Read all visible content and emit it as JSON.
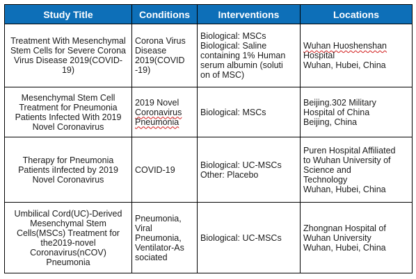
{
  "headers": [
    "Study Title",
    "Conditions",
    "Interventions",
    "Locations"
  ],
  "rows": [
    {
      "title": "Treatment With Mesenchymal Stem Cells for Severe Corona Virus Disease 2019(COVID-19)",
      "conditions": [
        "Corona Virus",
        "Disease",
        "2019(COVID",
        "-19)"
      ],
      "interventions": [
        "Biological: MSCs",
        "Biological: Saline",
        "containing 1% Human",
        "serum albumin (soluti",
        "on of MSC)"
      ],
      "locations": [
        "Wuhan Huoshenshan",
        "Hospital",
        "Wuhan, Hubei, China"
      ]
    },
    {
      "title": "Mesenchymal Stem Cell Treatment for Pneumonia Patients Infected With 2019 Novel Coronavirus",
      "conditions": [
        "2019 Novel",
        "Coronavirus",
        "Pneumonia"
      ],
      "interventions": [
        "Biological: MSCs"
      ],
      "locations": [
        "Beijing.302 Military",
        "Hospital of China",
        "Beijing, China"
      ]
    },
    {
      "title": "Therapy for Pneumonia Patients iInfected by 2019 Novel Coronavirus",
      "conditions": [
        "COVID-19"
      ],
      "interventions": [
        "Biological: UC-MSCs",
        "Other: Placebo"
      ],
      "locations": [
        "Puren Hospital Affiliated",
        "to Wuhan University of",
        "Science and",
        "Technology",
        "Wuhan, Hubei, China"
      ]
    },
    {
      "title": "Umbilical Cord(UC)-Derived Mesenchymal Stem Cells(MSCs) Treatment for the2019-novel Coronavirus(nCOV) Pneumonia",
      "conditions": [
        "Pneumonia,",
        "Viral",
        "Pneumonia,",
        "Ventilator-As",
        "sociated"
      ],
      "interventions": [
        "Biological: UC-MSCs"
      ],
      "locations": [
        "Zhongnan Hospital of",
        "Wuhan University",
        "Wuhan, Hubei, China"
      ]
    }
  ]
}
